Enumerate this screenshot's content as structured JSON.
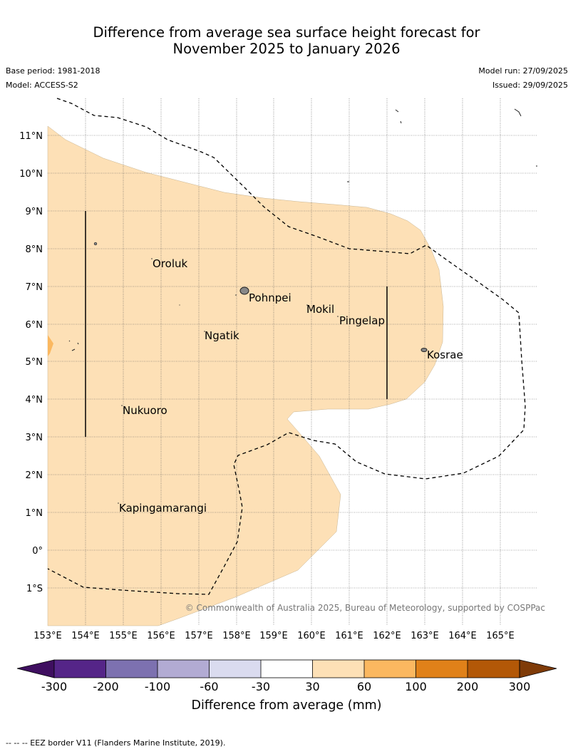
{
  "title": {
    "line1": "Difference from average sea surface height forecast for",
    "line2": "November 2025 to January 2026"
  },
  "meta": {
    "base_period": "Base period: 1981-2018",
    "model": "Model: ACCESS-S2",
    "model_run": "Model run: 27/09/2025",
    "issued": "Issued: 29/09/2025"
  },
  "map": {
    "lon_labels": [
      "153°E",
      "154°E",
      "155°E",
      "156°E",
      "157°E",
      "158°E",
      "159°E",
      "160°E",
      "161°E",
      "162°E",
      "163°E",
      "164°E",
      "165°E"
    ],
    "lat_labels": [
      "11°N",
      "10°N",
      "9°N",
      "8°N",
      "7°N",
      "6°N",
      "5°N",
      "4°N",
      "3°N",
      "2°N",
      "1°N",
      "0°",
      "1°S"
    ],
    "places": [
      "Oroluk",
      "Pohnpei",
      "Mokil",
      "Pingelap",
      "Ngatik",
      "Kosrae",
      "Nukuoro",
      "Kapingamarangi"
    ],
    "copyright": "© Commonwealth of Australia 2025, Bureau of Meteorology, supported by COSPPac",
    "dominant_class": "30 to 60 mm",
    "colors": {
      "main_fill": "#fde0b6",
      "small_patch": "#fbb860",
      "land": "#888888"
    }
  },
  "colorbar": {
    "ticks": [
      "-300",
      "-200",
      "-100",
      "-60",
      "-30",
      "30",
      "60",
      "100",
      "200",
      "300"
    ],
    "colors": [
      "#3f0f60",
      "#552588",
      "#7d71b0",
      "#b2abd3",
      "#dadbef",
      "#ffffff",
      "#fde0b6",
      "#fbb860",
      "#e08119",
      "#b35807",
      "#7f3b08"
    ],
    "label": "Difference from average (mm)"
  },
  "footer": "--  --  -- EEZ border V11 (Flanders Marine Institute, 2019)."
}
